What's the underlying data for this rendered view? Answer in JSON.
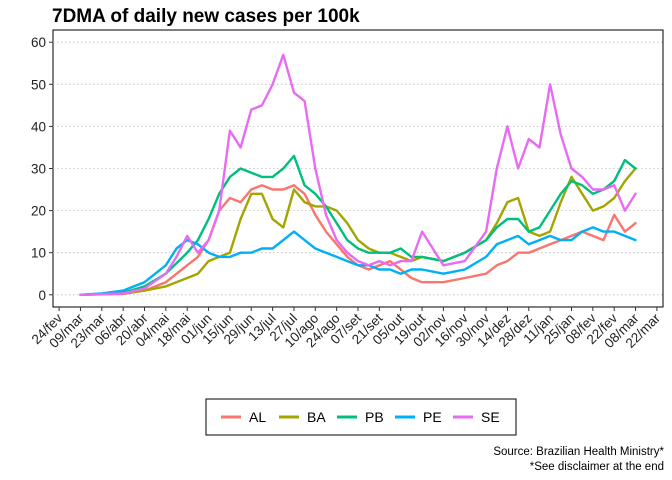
{
  "chart_data": {
    "type": "line",
    "title": "7DMA of daily new cases per 100k",
    "xlabel": "",
    "ylabel": "",
    "ylim": [
      0,
      60
    ],
    "yticks": [
      0,
      10,
      20,
      30,
      40,
      50,
      60
    ],
    "x_tick_labels": [
      "24/fev",
      "09/mar",
      "23/mar",
      "06/abr",
      "20/abr",
      "04/mai",
      "18/mai",
      "01/jun",
      "15/jun",
      "29/jun",
      "13/jul",
      "27/jul",
      "10/ago",
      "24/ago",
      "07/set",
      "21/set",
      "05/out",
      "19/out",
      "02/nov",
      "16/nov",
      "30/nov",
      "14/dez",
      "28/dez",
      "11/jan",
      "25/jan",
      "08/fev",
      "22/fev",
      "08/mar",
      "22/mar"
    ],
    "x_tick_dates": [
      "2020-02-24",
      "2020-03-09",
      "2020-03-23",
      "2020-04-06",
      "2020-04-20",
      "2020-05-04",
      "2020-05-18",
      "2020-06-01",
      "2020-06-15",
      "2020-06-29",
      "2020-07-13",
      "2020-07-27",
      "2020-08-10",
      "2020-08-24",
      "2020-09-07",
      "2020-09-21",
      "2020-10-05",
      "2020-10-19",
      "2020-11-02",
      "2020-11-16",
      "2020-11-30",
      "2020-12-14",
      "2020-12-28",
      "2021-01-11",
      "2021-01-25",
      "2021-02-08",
      "2021-02-22",
      "2021-03-08",
      "2021-03-22"
    ],
    "grid": "horizontal dotted",
    "legend_position": "bottom",
    "series": [
      {
        "name": "AL",
        "color": "#F8766D",
        "points": [
          [
            "2020-03-09",
            0
          ],
          [
            "2020-04-06",
            0.2
          ],
          [
            "2020-04-20",
            1
          ],
          [
            "2020-05-04",
            3
          ],
          [
            "2020-05-18",
            7
          ],
          [
            "2020-05-25",
            9
          ],
          [
            "2020-06-01",
            13
          ],
          [
            "2020-06-08",
            20
          ],
          [
            "2020-06-15",
            23
          ],
          [
            "2020-06-22",
            22
          ],
          [
            "2020-06-29",
            25
          ],
          [
            "2020-07-06",
            26
          ],
          [
            "2020-07-13",
            25
          ],
          [
            "2020-07-20",
            25
          ],
          [
            "2020-07-27",
            26
          ],
          [
            "2020-08-03",
            24
          ],
          [
            "2020-08-10",
            19
          ],
          [
            "2020-08-17",
            15
          ],
          [
            "2020-08-24",
            12
          ],
          [
            "2020-08-31",
            9
          ],
          [
            "2020-09-07",
            7
          ],
          [
            "2020-09-14",
            6
          ],
          [
            "2020-09-21",
            7
          ],
          [
            "2020-09-28",
            8
          ],
          [
            "2020-10-05",
            6
          ],
          [
            "2020-10-12",
            4
          ],
          [
            "2020-10-19",
            3
          ],
          [
            "2020-11-02",
            3
          ],
          [
            "2020-11-16",
            4
          ],
          [
            "2020-11-30",
            5
          ],
          [
            "2020-12-07",
            7
          ],
          [
            "2020-12-14",
            8
          ],
          [
            "2020-12-21",
            10
          ],
          [
            "2020-12-28",
            10
          ],
          [
            "2021-01-04",
            11
          ],
          [
            "2021-01-11",
            12
          ],
          [
            "2021-01-18",
            13
          ],
          [
            "2021-01-25",
            14
          ],
          [
            "2021-02-01",
            15
          ],
          [
            "2021-02-08",
            14
          ],
          [
            "2021-02-15",
            13
          ],
          [
            "2021-02-22",
            19
          ],
          [
            "2021-03-01",
            15
          ],
          [
            "2021-03-08",
            17
          ]
        ]
      },
      {
        "name": "BA",
        "color": "#A3A500",
        "points": [
          [
            "2020-03-09",
            0
          ],
          [
            "2020-04-06",
            0.3
          ],
          [
            "2020-04-20",
            1
          ],
          [
            "2020-05-04",
            2
          ],
          [
            "2020-05-18",
            4
          ],
          [
            "2020-05-25",
            5
          ],
          [
            "2020-06-01",
            8
          ],
          [
            "2020-06-08",
            9
          ],
          [
            "2020-06-15",
            10
          ],
          [
            "2020-06-22",
            18
          ],
          [
            "2020-06-29",
            24
          ],
          [
            "2020-07-06",
            24
          ],
          [
            "2020-07-13",
            18
          ],
          [
            "2020-07-20",
            16
          ],
          [
            "2020-07-27",
            25
          ],
          [
            "2020-08-03",
            22
          ],
          [
            "2020-08-10",
            21
          ],
          [
            "2020-08-17",
            21
          ],
          [
            "2020-08-24",
            20
          ],
          [
            "2020-08-31",
            17
          ],
          [
            "2020-09-07",
            13
          ],
          [
            "2020-09-14",
            11
          ],
          [
            "2020-09-21",
            10
          ],
          [
            "2020-09-28",
            10
          ],
          [
            "2020-10-05",
            9
          ],
          [
            "2020-10-12",
            8
          ],
          [
            "2020-10-19",
            9
          ],
          [
            "2020-11-02",
            8
          ],
          [
            "2020-11-16",
            10
          ],
          [
            "2020-11-30",
            13
          ],
          [
            "2020-12-07",
            17
          ],
          [
            "2020-12-14",
            22
          ],
          [
            "2020-12-21",
            23
          ],
          [
            "2020-12-28",
            15
          ],
          [
            "2021-01-04",
            14
          ],
          [
            "2021-01-11",
            15
          ],
          [
            "2021-01-18",
            22
          ],
          [
            "2021-01-25",
            28
          ],
          [
            "2021-02-01",
            24
          ],
          [
            "2021-02-08",
            20
          ],
          [
            "2021-02-15",
            21
          ],
          [
            "2021-02-22",
            23
          ],
          [
            "2021-03-01",
            27
          ],
          [
            "2021-03-08",
            30
          ]
        ]
      },
      {
        "name": "PB",
        "color": "#00BF7D",
        "points": [
          [
            "2020-03-09",
            0
          ],
          [
            "2020-04-06",
            0.5
          ],
          [
            "2020-04-20",
            2
          ],
          [
            "2020-05-04",
            5
          ],
          [
            "2020-05-18",
            10
          ],
          [
            "2020-05-25",
            13
          ],
          [
            "2020-06-01",
            18
          ],
          [
            "2020-06-08",
            24
          ],
          [
            "2020-06-15",
            28
          ],
          [
            "2020-06-22",
            30
          ],
          [
            "2020-06-29",
            29
          ],
          [
            "2020-07-06",
            28
          ],
          [
            "2020-07-13",
            28
          ],
          [
            "2020-07-20",
            30
          ],
          [
            "2020-07-27",
            33
          ],
          [
            "2020-08-03",
            26
          ],
          [
            "2020-08-10",
            24
          ],
          [
            "2020-08-17",
            21
          ],
          [
            "2020-08-24",
            17
          ],
          [
            "2020-08-31",
            13
          ],
          [
            "2020-09-07",
            11
          ],
          [
            "2020-09-14",
            10
          ],
          [
            "2020-09-21",
            10
          ],
          [
            "2020-09-28",
            10
          ],
          [
            "2020-10-05",
            11
          ],
          [
            "2020-10-12",
            9
          ],
          [
            "2020-10-19",
            9
          ],
          [
            "2020-11-02",
            8
          ],
          [
            "2020-11-16",
            10
          ],
          [
            "2020-11-30",
            13
          ],
          [
            "2020-12-07",
            16
          ],
          [
            "2020-12-14",
            18
          ],
          [
            "2020-12-21",
            18
          ],
          [
            "2020-12-28",
            15
          ],
          [
            "2021-01-04",
            16
          ],
          [
            "2021-01-11",
            20
          ],
          [
            "2021-01-18",
            24
          ],
          [
            "2021-01-25",
            27
          ],
          [
            "2021-02-01",
            26
          ],
          [
            "2021-02-08",
            24
          ],
          [
            "2021-02-15",
            25
          ],
          [
            "2021-02-22",
            27
          ],
          [
            "2021-03-01",
            32
          ],
          [
            "2021-03-08",
            30
          ]
        ]
      },
      {
        "name": "PE",
        "color": "#00B0F6",
        "points": [
          [
            "2020-03-09",
            0
          ],
          [
            "2020-03-23",
            0.3
          ],
          [
            "2020-04-06",
            1
          ],
          [
            "2020-04-20",
            3
          ],
          [
            "2020-05-04",
            7
          ],
          [
            "2020-05-11",
            11
          ],
          [
            "2020-05-18",
            13
          ],
          [
            "2020-05-25",
            12
          ],
          [
            "2020-06-01",
            10
          ],
          [
            "2020-06-08",
            9
          ],
          [
            "2020-06-15",
            9
          ],
          [
            "2020-06-22",
            10
          ],
          [
            "2020-06-29",
            10
          ],
          [
            "2020-07-06",
            11
          ],
          [
            "2020-07-13",
            11
          ],
          [
            "2020-07-20",
            13
          ],
          [
            "2020-07-27",
            15
          ],
          [
            "2020-08-03",
            13
          ],
          [
            "2020-08-10",
            11
          ],
          [
            "2020-08-17",
            10
          ],
          [
            "2020-08-24",
            9
          ],
          [
            "2020-08-31",
            8
          ],
          [
            "2020-09-07",
            7
          ],
          [
            "2020-09-14",
            7
          ],
          [
            "2020-09-21",
            6
          ],
          [
            "2020-09-28",
            6
          ],
          [
            "2020-10-05",
            5
          ],
          [
            "2020-10-12",
            6
          ],
          [
            "2020-10-19",
            6
          ],
          [
            "2020-11-02",
            5
          ],
          [
            "2020-11-16",
            6
          ],
          [
            "2020-11-30",
            9
          ],
          [
            "2020-12-07",
            12
          ],
          [
            "2020-12-14",
            13
          ],
          [
            "2020-12-21",
            14
          ],
          [
            "2020-12-28",
            12
          ],
          [
            "2021-01-04",
            13
          ],
          [
            "2021-01-11",
            14
          ],
          [
            "2021-01-18",
            13
          ],
          [
            "2021-01-25",
            13
          ],
          [
            "2021-02-01",
            15
          ],
          [
            "2021-02-08",
            16
          ],
          [
            "2021-02-15",
            15
          ],
          [
            "2021-02-22",
            15
          ],
          [
            "2021-03-01",
            14
          ],
          [
            "2021-03-08",
            13
          ]
        ]
      },
      {
        "name": "SE",
        "color": "#E76BF3",
        "points": [
          [
            "2020-03-09",
            0
          ],
          [
            "2020-04-06",
            0.3
          ],
          [
            "2020-04-20",
            1.5
          ],
          [
            "2020-05-04",
            5
          ],
          [
            "2020-05-11",
            9
          ],
          [
            "2020-05-18",
            14
          ],
          [
            "2020-05-25",
            10
          ],
          [
            "2020-06-01",
            13
          ],
          [
            "2020-06-08",
            20
          ],
          [
            "2020-06-15",
            39
          ],
          [
            "2020-06-22",
            35
          ],
          [
            "2020-06-29",
            44
          ],
          [
            "2020-07-06",
            45
          ],
          [
            "2020-07-13",
            50
          ],
          [
            "2020-07-20",
            57
          ],
          [
            "2020-07-27",
            48
          ],
          [
            "2020-08-03",
            46
          ],
          [
            "2020-08-10",
            30
          ],
          [
            "2020-08-17",
            19
          ],
          [
            "2020-08-24",
            13
          ],
          [
            "2020-08-31",
            10
          ],
          [
            "2020-09-07",
            8
          ],
          [
            "2020-09-14",
            7
          ],
          [
            "2020-09-21",
            8
          ],
          [
            "2020-09-28",
            7
          ],
          [
            "2020-10-05",
            8
          ],
          [
            "2020-10-12",
            8
          ],
          [
            "2020-10-19",
            15
          ],
          [
            "2020-11-02",
            7
          ],
          [
            "2020-11-16",
            8
          ],
          [
            "2020-11-30",
            15
          ],
          [
            "2020-12-07",
            30
          ],
          [
            "2020-12-14",
            40
          ],
          [
            "2020-12-21",
            30
          ],
          [
            "2020-12-28",
            37
          ],
          [
            "2021-01-04",
            35
          ],
          [
            "2021-01-11",
            50
          ],
          [
            "2021-01-18",
            38
          ],
          [
            "2021-01-25",
            30
          ],
          [
            "2021-02-01",
            28
          ],
          [
            "2021-02-08",
            25
          ],
          [
            "2021-02-15",
            25
          ],
          [
            "2021-02-22",
            26
          ],
          [
            "2021-03-01",
            20
          ],
          [
            "2021-03-08",
            24
          ]
        ]
      }
    ]
  },
  "caption": {
    "line1": "Source: Brazilian Health Ministry*",
    "line2": "*See disclaimer at the end"
  }
}
